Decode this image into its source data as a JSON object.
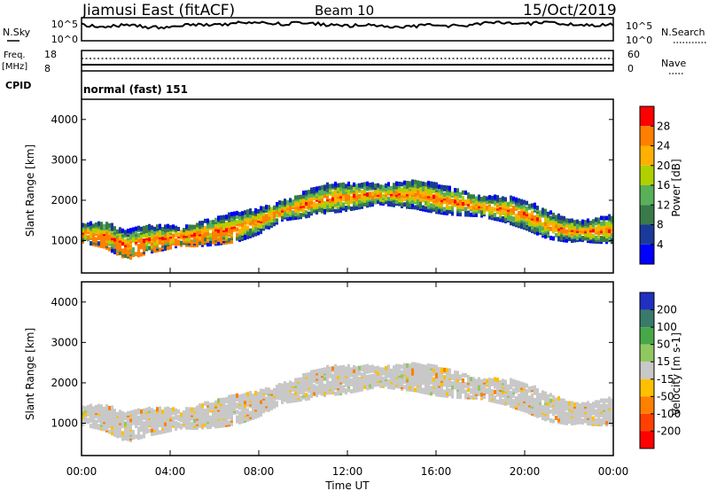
{
  "header": {
    "station": "Jiamusi East (fitACF)",
    "beam": "Beam 10",
    "date": "15/Oct/2019"
  },
  "noise_panel": {
    "left_label": "N.Sky",
    "right_label": "N.Search",
    "left_ticks": [
      "10^5",
      "10^0"
    ],
    "right_ticks": [
      "10^5",
      "10^0"
    ]
  },
  "freq_panel": {
    "left_label_line1": "Freq.",
    "left_label_line2": "[MHz]",
    "left_ticks": [
      "18",
      "8"
    ],
    "right_label": "Nave",
    "right_ticks": [
      "60",
      "0"
    ]
  },
  "cpid": {
    "label": "CPID",
    "value": "normal (fast) 151"
  },
  "power_colorbar": {
    "label": "Power [dB]",
    "ticks": [
      "28",
      "24",
      "20",
      "16",
      "12",
      "8",
      "4"
    ],
    "colors": [
      "#ff0000",
      "#ff7f00",
      "#ffb000",
      "#b0d000",
      "#58b058",
      "#3a7a4a",
      "#1a3a9a",
      "#0000ff"
    ]
  },
  "velocity_colorbar": {
    "label": "Velocity [m s-1]",
    "ticks": [
      "200",
      "100",
      "50",
      "15",
      "-15",
      "-50",
      "-100",
      "-200"
    ],
    "colors": [
      "#2030c0",
      "#3a7a6a",
      "#48a848",
      "#90c860",
      "#c8c8c8",
      "#ffc000",
      "#ff8000",
      "#ff4000",
      "#ff0000"
    ]
  },
  "chart_data": [
    {
      "type": "heatmap",
      "ylabel": "Slant Range [km]",
      "ylim": [
        200,
        4500
      ],
      "yticks": [
        1000,
        2000,
        3000,
        4000
      ],
      "xlim": [
        0,
        24
      ],
      "xticks": [
        "00:00",
        "04:00",
        "08:00",
        "12:00",
        "16:00",
        "20:00",
        "00:00"
      ],
      "variable": "Power [dB]",
      "echo_band_center_km": [
        [
          0,
          1200
        ],
        [
          1,
          1150
        ],
        [
          2,
          900
        ],
        [
          3,
          1050
        ],
        [
          4,
          1100
        ],
        [
          5,
          1150
        ],
        [
          6,
          1250
        ],
        [
          7,
          1350
        ],
        [
          8,
          1500
        ],
        [
          9,
          1750
        ],
        [
          10,
          1900
        ],
        [
          11,
          2050
        ],
        [
          12,
          2100
        ],
        [
          13,
          2150
        ],
        [
          14,
          2150
        ],
        [
          15,
          2150
        ],
        [
          16,
          2050
        ],
        [
          17,
          1950
        ],
        [
          18,
          1850
        ],
        [
          19,
          1800
        ],
        [
          20,
          1650
        ],
        [
          21,
          1400
        ],
        [
          22,
          1250
        ],
        [
          23,
          1250
        ],
        [
          24,
          1300
        ]
      ]
    },
    {
      "type": "heatmap",
      "ylabel": "Slant Range [km]",
      "ylim": [
        200,
        4500
      ],
      "yticks": [
        1000,
        2000,
        3000,
        4000
      ],
      "xlim": [
        0,
        24
      ],
      "xticks": [
        "00:00",
        "04:00",
        "08:00",
        "12:00",
        "16:00",
        "20:00",
        "00:00"
      ],
      "xlabel": "Time UT",
      "variable": "Velocity [m s-1]"
    }
  ]
}
